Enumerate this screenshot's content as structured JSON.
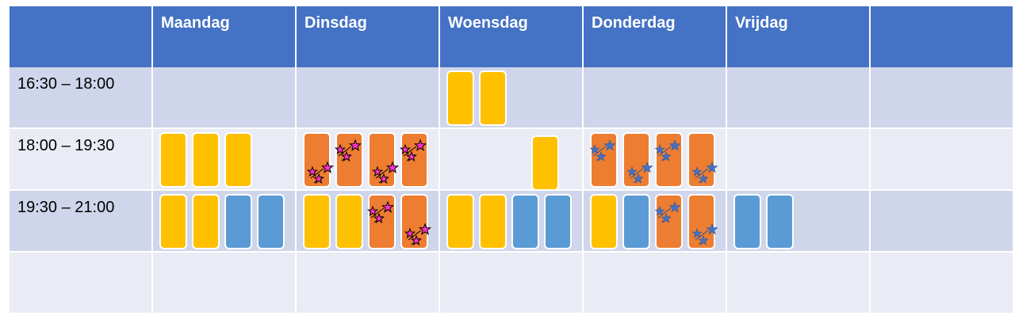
{
  "colors": {
    "header": "#4472c4",
    "row_dark": "#cfd5ea",
    "row_light": "#e9ebf5",
    "yellow": "#ffc000",
    "orange": "#ed7d31",
    "blue": "#5b9bd5",
    "star_pink": "#ff33cc",
    "star_blue": "#4472c4"
  },
  "header": {
    "days": [
      "Maandag",
      "Dinsdag",
      "Woensdag",
      "Donderdag",
      "Vrijdag"
    ]
  },
  "rows": [
    {
      "time": "16:30 – 18:00"
    },
    {
      "time": "18:00 – 19:30"
    },
    {
      "time": "19:30 – 21:00"
    },
    {
      "time": ""
    }
  ],
  "schedule": [
    {
      "row": 0,
      "day": 2,
      "slot": 0,
      "color": "yellow",
      "stars": ""
    },
    {
      "row": 0,
      "day": 2,
      "slot": 1,
      "color": "yellow",
      "stars": ""
    },
    {
      "row": 1,
      "day": 0,
      "slot": 0,
      "color": "yellow",
      "stars": ""
    },
    {
      "row": 1,
      "day": 0,
      "slot": 1,
      "color": "yellow",
      "stars": ""
    },
    {
      "row": 1,
      "day": 0,
      "slot": 2,
      "color": "yellow",
      "stars": ""
    },
    {
      "row": 1,
      "day": 1,
      "slot": 0,
      "color": "orange",
      "stars": "pink"
    },
    {
      "row": 1,
      "day": 1,
      "slot": 1,
      "color": "orange",
      "stars": "pink"
    },
    {
      "row": 1,
      "day": 1,
      "slot": 2,
      "color": "orange",
      "stars": "pink"
    },
    {
      "row": 1,
      "day": 1,
      "slot": 3,
      "color": "orange",
      "stars": "pink"
    },
    {
      "row": 1,
      "day": 2,
      "slot": 2.5,
      "color": "yellow",
      "stars": "",
      "shift": 4
    },
    {
      "row": 1,
      "day": 3,
      "slot": 0,
      "color": "orange",
      "stars": "blue"
    },
    {
      "row": 1,
      "day": 3,
      "slot": 1,
      "color": "orange",
      "stars": "blue"
    },
    {
      "row": 1,
      "day": 3,
      "slot": 2,
      "color": "orange",
      "stars": "blue"
    },
    {
      "row": 1,
      "day": 3,
      "slot": 3,
      "color": "orange",
      "stars": "blue"
    },
    {
      "row": 2,
      "day": 0,
      "slot": 0,
      "color": "yellow",
      "stars": ""
    },
    {
      "row": 2,
      "day": 0,
      "slot": 1,
      "color": "yellow",
      "stars": ""
    },
    {
      "row": 2,
      "day": 0,
      "slot": 2,
      "color": "blue",
      "stars": ""
    },
    {
      "row": 2,
      "day": 0,
      "slot": 3,
      "color": "blue",
      "stars": ""
    },
    {
      "row": 2,
      "day": 1,
      "slot": 0,
      "color": "yellow",
      "stars": ""
    },
    {
      "row": 2,
      "day": 1,
      "slot": 1,
      "color": "yellow",
      "stars": ""
    },
    {
      "row": 2,
      "day": 1,
      "slot": 2,
      "color": "orange",
      "stars": "pink"
    },
    {
      "row": 2,
      "day": 1,
      "slot": 3,
      "color": "orange",
      "stars": "pink"
    },
    {
      "row": 2,
      "day": 2,
      "slot": 0,
      "color": "yellow",
      "stars": ""
    },
    {
      "row": 2,
      "day": 2,
      "slot": 1,
      "color": "yellow",
      "stars": ""
    },
    {
      "row": 2,
      "day": 2,
      "slot": 2,
      "color": "blue",
      "stars": ""
    },
    {
      "row": 2,
      "day": 2,
      "slot": 3,
      "color": "blue",
      "stars": ""
    },
    {
      "row": 2,
      "day": 3,
      "slot": 0,
      "color": "yellow",
      "stars": ""
    },
    {
      "row": 2,
      "day": 3,
      "slot": 1,
      "color": "blue",
      "stars": ""
    },
    {
      "row": 2,
      "day": 3,
      "slot": 2,
      "color": "orange",
      "stars": "blue"
    },
    {
      "row": 2,
      "day": 3,
      "slot": 3,
      "color": "orange",
      "stars": "blue"
    },
    {
      "row": 2,
      "day": 4,
      "slot": 0,
      "color": "blue",
      "stars": ""
    },
    {
      "row": 2,
      "day": 4,
      "slot": 1,
      "color": "blue",
      "stars": ""
    }
  ]
}
